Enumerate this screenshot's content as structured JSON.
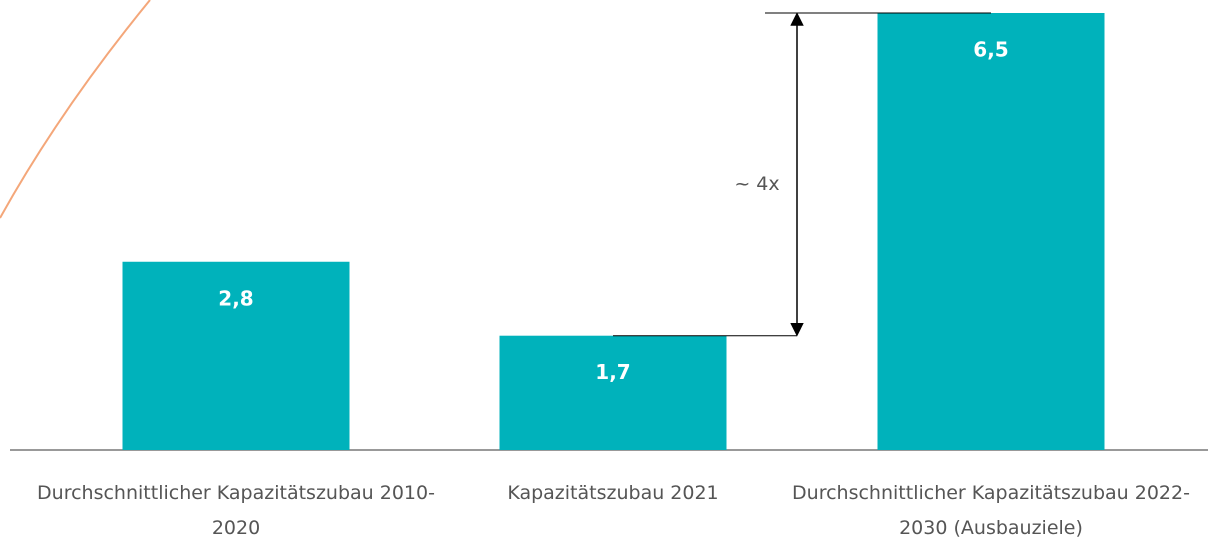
{
  "chart_data": {
    "type": "bar",
    "categories": [
      "Durchschnittlicher Kapazitätszubau 2010-2020",
      "Kapazitätszubau 2021",
      "Durchschnittlicher Kapazitätszubau 2022-2030 (Ausbauziele)"
    ],
    "values": [
      2.8,
      1.7,
      6.5
    ],
    "value_labels": [
      "2,8",
      "1,7",
      "6,5"
    ],
    "color": "#00b2bb",
    "ylim": [
      0,
      6.5
    ],
    "annotation": "~ 4x"
  }
}
